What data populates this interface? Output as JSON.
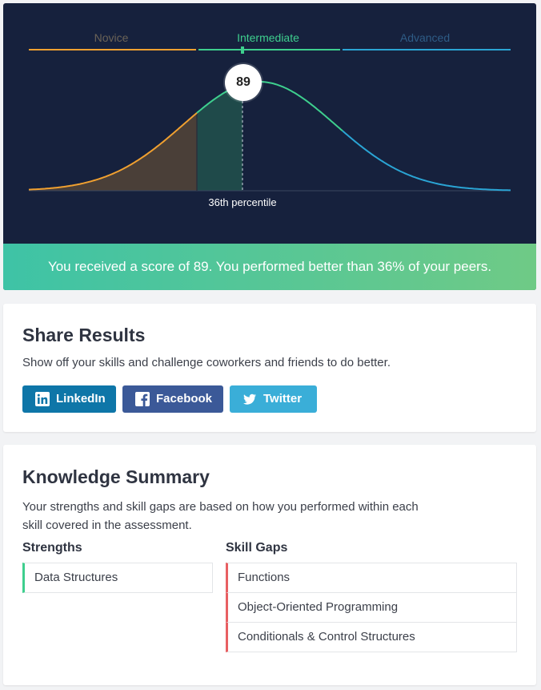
{
  "chart": {
    "levels": [
      {
        "name": "Novice",
        "color": "#f0a030"
      },
      {
        "name": "Intermediate",
        "color": "#3ecf8e"
      },
      {
        "name": "Advanced",
        "color": "#2aa4d4"
      }
    ],
    "score": "89",
    "percentile_label": "36th percentile"
  },
  "chart_data": {
    "type": "area",
    "title": "",
    "score": 89,
    "percentile": 36,
    "segments": [
      "Novice",
      "Intermediate",
      "Advanced"
    ],
    "segment_colors": [
      "#f0a030",
      "#3ecf8e",
      "#2aa4d4"
    ]
  },
  "banner": {
    "text": "You received a score of 89. You performed better than 36% of your peers."
  },
  "share": {
    "title": "Share Results",
    "description": "Show off your skills and challenge coworkers and friends to do better.",
    "buttons": {
      "linkedin": "LinkedIn",
      "facebook": "Facebook",
      "twitter": "Twitter"
    }
  },
  "knowledge": {
    "title": "Knowledge Summary",
    "description": "Your strengths and skill gaps are based on how you performed within each skill covered in the assessment.",
    "strengths_title": "Strengths",
    "gaps_title": "Skill Gaps",
    "strengths": [
      "Data Structures"
    ],
    "gaps": [
      "Functions",
      "Object-Oriented Programming",
      "Conditionals & Control Structures"
    ]
  }
}
